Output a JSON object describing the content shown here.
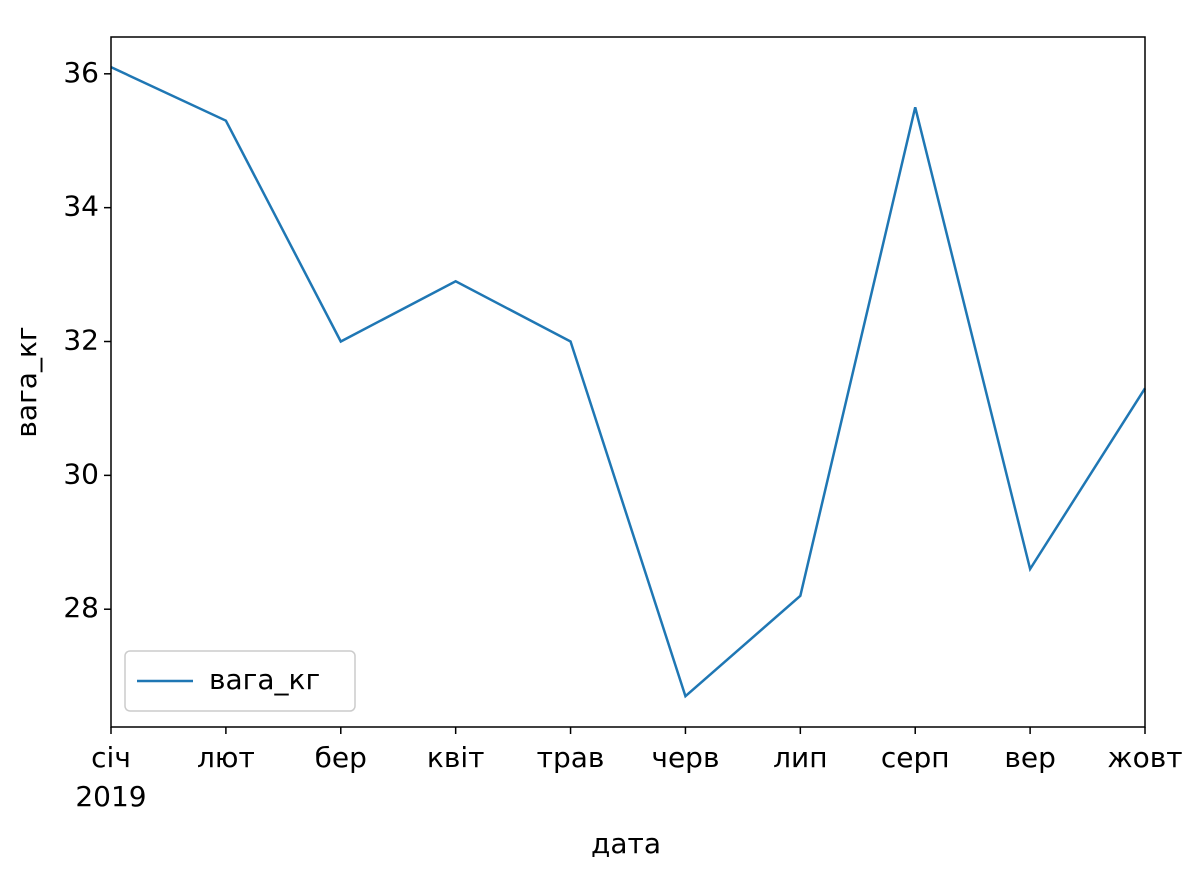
{
  "chart_data": {
    "type": "line",
    "xlabel": "дата",
    "ylabel": "вага_кг",
    "categories": [
      "січ",
      "лют",
      "бер",
      "квіт",
      "трав",
      "черв",
      "лип",
      "серп",
      "вер",
      "жовт"
    ],
    "year_label": "2019",
    "series": [
      {
        "name": "вага_кг",
        "color": "#1f77b4",
        "values": [
          36.1,
          35.3,
          32.0,
          32.9,
          32.0,
          26.7,
          28.2,
          35.5,
          28.6,
          31.3
        ]
      }
    ],
    "ylim": [
      26.24,
      36.55
    ],
    "yticks": [
      28,
      30,
      32,
      34,
      36
    ],
    "legend": "lower left"
  }
}
